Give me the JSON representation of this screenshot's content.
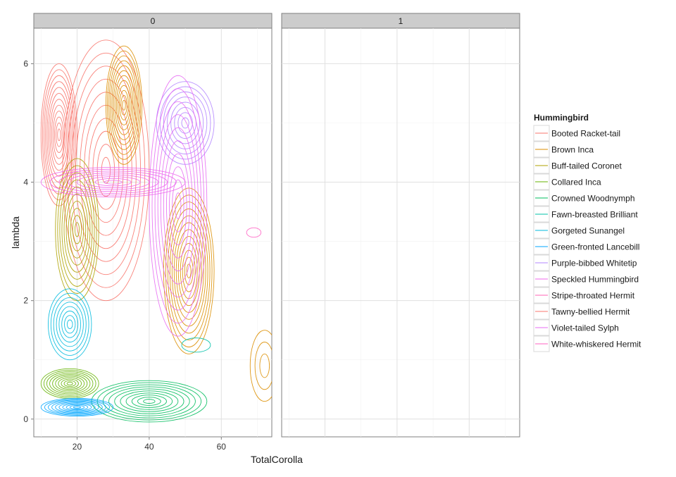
{
  "chart_data": {
    "type": "contour",
    "xlabel": "TotalCorolla",
    "ylabel": "lambda",
    "xlim": [
      8,
      74
    ],
    "ylim": [
      -0.3,
      6.6
    ],
    "x_ticks": [
      20,
      40,
      60
    ],
    "y_ticks": [
      0,
      2,
      4,
      6
    ],
    "panels": [
      {
        "label": "0",
        "has_data": true
      },
      {
        "label": "1",
        "has_data": false
      }
    ],
    "legend": {
      "title": "Hummingbird",
      "placement": "right",
      "entries": [
        {
          "name": "Booted Racket-tail",
          "color": "#F8766D"
        },
        {
          "name": "Brown Inca",
          "color": "#DB8E00"
        },
        {
          "name": "Buff-tailed Coronet",
          "color": "#AEA200"
        },
        {
          "name": "Collared Inca",
          "color": "#64B200"
        },
        {
          "name": "Crowned Woodnymph",
          "color": "#00BD5C"
        },
        {
          "name": "Fawn-breasted Brilliant",
          "color": "#00C1A7"
        },
        {
          "name": "Gorgeted Sunangel",
          "color": "#00BADE"
        },
        {
          "name": "Green-fronted Lancebill",
          "color": "#00A6FF"
        },
        {
          "name": "Purple-bibbed Whitetip",
          "color": "#B385FF"
        },
        {
          "name": "Speckled Hummingbird",
          "color": "#EF67EB"
        },
        {
          "name": "Stripe-throated Hermit",
          "color": "#FF63B6"
        },
        {
          "name": "Tawny-bellied Hermit",
          "color": "#F8766D"
        },
        {
          "name": "Violet-tailed Sylph",
          "color": "#E76BF3"
        },
        {
          "name": "White-whiskered Hermit",
          "color": "#FF61C3"
        }
      ]
    },
    "density_clusters": [
      {
        "series": "Tawny-bellied Hermit",
        "cx": 15,
        "cy": 4.8,
        "sx": 5,
        "sy": 1.2,
        "levels": 12,
        "color": "#F8766D"
      },
      {
        "series": "Booted Racket-tail",
        "cx": 28,
        "cy": 4.2,
        "sx": 12,
        "sy": 2.2,
        "levels": 10,
        "color": "#F8766D"
      },
      {
        "series": "Brown Inca",
        "cx": 33,
        "cy": 5.3,
        "sx": 5,
        "sy": 1.0,
        "levels": 12,
        "color": "#DB8E00"
      },
      {
        "series": "Brown Inca",
        "cx": 51,
        "cy": 2.5,
        "sx": 7,
        "sy": 1.4,
        "levels": 12,
        "color": "#DB8E00"
      },
      {
        "series": "Buff-tailed Coronet",
        "cx": 20,
        "cy": 3.2,
        "sx": 6,
        "sy": 1.2,
        "levels": 10,
        "color": "#AEA200"
      },
      {
        "series": "Collared Inca",
        "cx": 18,
        "cy": 0.6,
        "sx": 8,
        "sy": 0.25,
        "levels": 10,
        "color": "#64B200"
      },
      {
        "series": "Crowned Woodnymph",
        "cx": 40,
        "cy": 0.3,
        "sx": 16,
        "sy": 0.35,
        "levels": 10,
        "color": "#00BD5C"
      },
      {
        "series": "Fawn-breasted Brilliant",
        "cx": 53,
        "cy": 1.25,
        "sx": 4,
        "sy": 0.12,
        "levels": 1,
        "color": "#00C1A7"
      },
      {
        "series": "Gorgeted Sunangel",
        "cx": 18,
        "cy": 1.6,
        "sx": 6,
        "sy": 0.6,
        "levels": 8,
        "color": "#00BADE"
      },
      {
        "series": "Green-fronted Lancebill",
        "cx": 20,
        "cy": 0.2,
        "sx": 10,
        "sy": 0.15,
        "levels": 10,
        "color": "#00A6FF"
      },
      {
        "series": "Purple-bibbed Whitetip",
        "cx": 50,
        "cy": 5.0,
        "sx": 8,
        "sy": 0.7,
        "levels": 8,
        "color": "#B385FF"
      },
      {
        "series": "Speckled Hummingbird",
        "cx": 30,
        "cy": 4.0,
        "sx": 20,
        "sy": 0.25,
        "levels": 8,
        "color": "#EF67EB"
      },
      {
        "series": "Violet-tailed Sylph",
        "cx": 48,
        "cy": 3.6,
        "sx": 8,
        "sy": 2.2,
        "levels": 10,
        "color": "#E76BF3"
      },
      {
        "series": "White-whiskered Hermit",
        "cx": 69,
        "cy": 3.15,
        "sx": 2,
        "sy": 0.08,
        "levels": 1,
        "color": "#FF61C3"
      },
      {
        "series": "Brown Inca",
        "cx": 72,
        "cy": 0.9,
        "sx": 4,
        "sy": 0.6,
        "levels": 3,
        "color": "#DB8E00"
      }
    ]
  }
}
